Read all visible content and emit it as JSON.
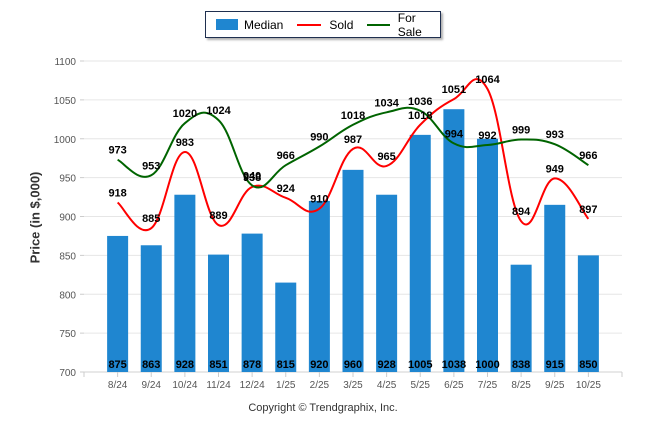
{
  "chart_data": {
    "type": "bar",
    "title": "",
    "xlabel": "",
    "ylabel": "Price (in $,000)",
    "ylim": [
      700,
      1100
    ],
    "yticks": [
      700,
      750,
      800,
      850,
      900,
      950,
      1000,
      1050,
      1100
    ],
    "grid": true,
    "legend_position": "top-center",
    "categories": [
      "8/24",
      "9/24",
      "10/24",
      "11/24",
      "12/24",
      "1/25",
      "2/25",
      "3/25",
      "4/25",
      "5/25",
      "6/25",
      "7/25",
      "8/25",
      "9/25",
      "10/25"
    ],
    "series": [
      {
        "name": "Median",
        "kind": "bar",
        "color": "#1f86d0",
        "values": [
          875,
          863,
          928,
          851,
          878,
          815,
          920,
          960,
          928,
          1005,
          1038,
          1000,
          838,
          915,
          850
        ]
      },
      {
        "name": "Sold",
        "kind": "line",
        "color": "#ff0000",
        "values": [
          918,
          885,
          983,
          889,
          938,
          924,
          910,
          987,
          965,
          1018,
          1051,
          1064,
          894,
          949,
          897
        ]
      },
      {
        "name": "For Sale",
        "kind": "line",
        "color": "#006400",
        "values": [
          973,
          953,
          1020,
          1024,
          940,
          966,
          990,
          1018,
          1034,
          1036,
          994,
          992,
          999,
          993,
          966
        ]
      }
    ]
  },
  "legend": {
    "items": [
      {
        "label": "Median",
        "color": "#1f86d0"
      },
      {
        "label": "Sold",
        "color": "#ff0000"
      },
      {
        "label": "For Sale",
        "color": "#006400"
      }
    ]
  },
  "footer": {
    "copyright": "Copyright © Trendgraphix, Inc."
  }
}
